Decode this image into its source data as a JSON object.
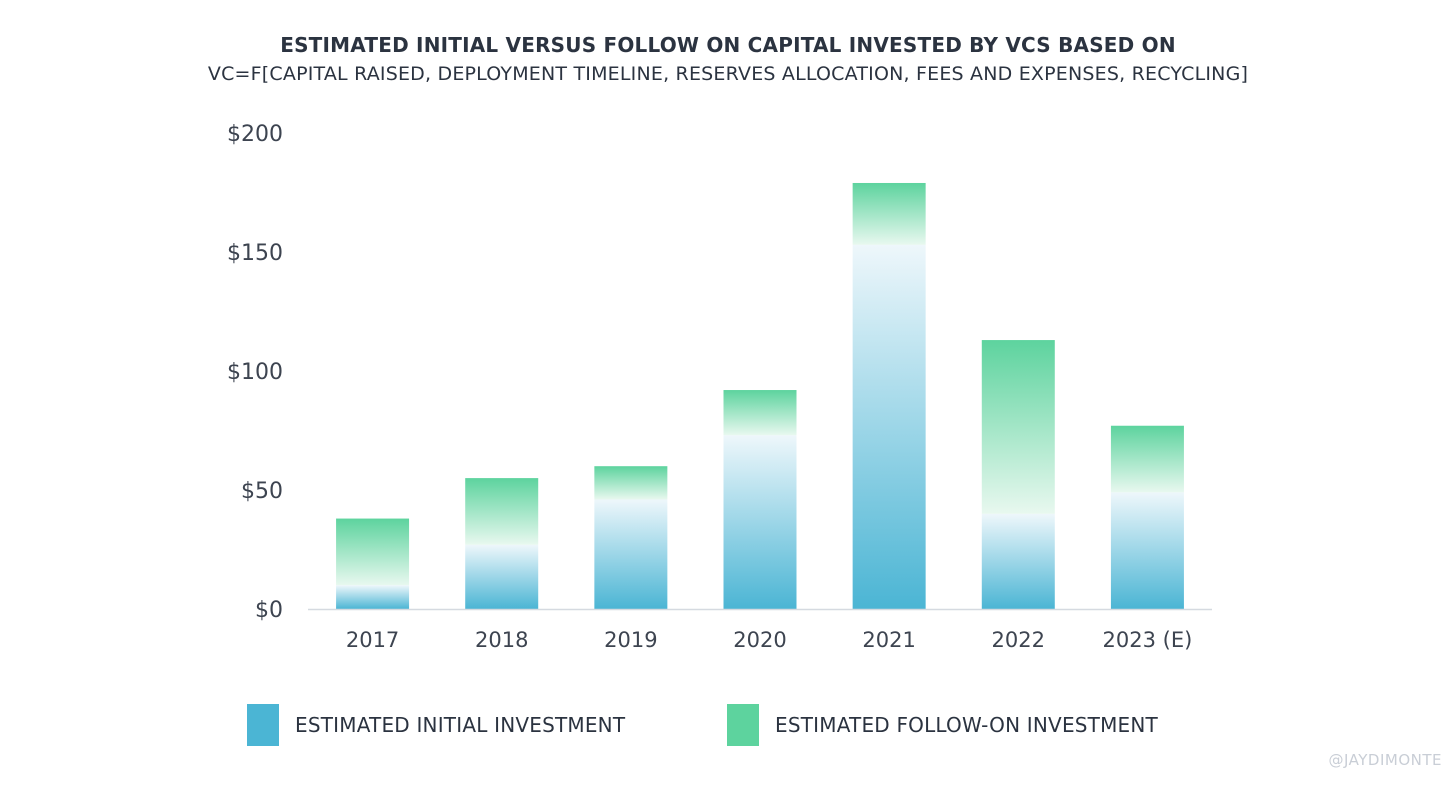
{
  "chart_data": {
    "type": "bar",
    "stacked": true,
    "title": "ESTIMATED INITIAL VERSUS FOLLOW ON CAPITAL INVESTED BY VCS BASED ON",
    "subtitle": "VC=F[CAPITAL RAISED, DEPLOYMENT TIMELINE, RESERVES ALLOCATION, FEES AND EXPENSES, RECYCLING]",
    "categories": [
      "2017",
      "2018",
      "2019",
      "2020",
      "2021",
      "2022",
      "2023 (E)"
    ],
    "series": [
      {
        "name": "ESTIMATED INITIAL INVESTMENT",
        "color": "#4bb5d4",
        "values": [
          10,
          27,
          46,
          73,
          153,
          40,
          49
        ]
      },
      {
        "name": "ESTIMATED FOLLOW-ON INVESTMENT",
        "color": "#5dd39e",
        "values": [
          28,
          28,
          14,
          19,
          26,
          73,
          28
        ]
      }
    ],
    "ylim": [
      0,
      200
    ],
    "yticks": [
      0,
      50,
      100,
      150,
      200
    ],
    "ytick_labels": [
      "$0",
      "$50",
      "$100",
      "$150",
      "$200"
    ],
    "xlabel": "",
    "ylabel": "",
    "grid": false,
    "legend_position": "bottom"
  },
  "watermark": "@JAYDIMONTE"
}
